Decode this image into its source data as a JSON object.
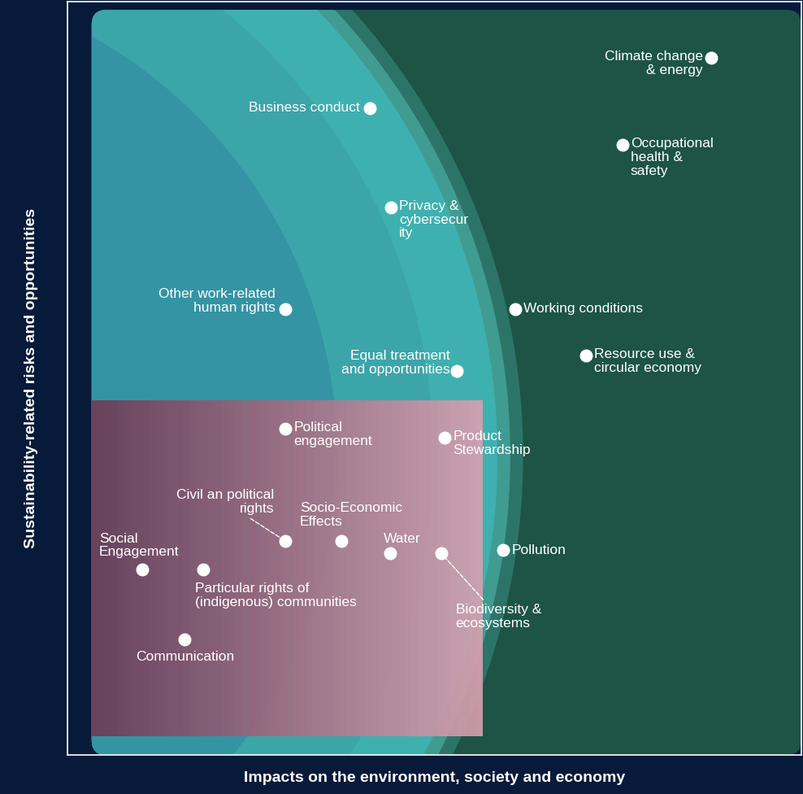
{
  "chart_data": {
    "type": "scatter",
    "x_label": "Impacts on the environment, society and economy",
    "y_label": "Sustainability-related risks and opportunities",
    "xlim": [
      0,
      100
    ],
    "ylim": [
      0,
      100
    ],
    "xticks": [],
    "yticks": [],
    "tick_labels": false,
    "grid": false,
    "color": "#ffffff",
    "marker": "o",
    "points": [
      {
        "label": "Climate change & energy",
        "x": 87.7,
        "y": 92.5
      },
      {
        "label": "Business conduct",
        "x": 41.2,
        "y": 85.9
      },
      {
        "label": "Occupational health & safety",
        "x": 75.6,
        "y": 81.0
      },
      {
        "label": "Privacy & cybersecurity",
        "x": 44.1,
        "y": 72.7
      },
      {
        "label": "Other work-related human rights",
        "x": 29.7,
        "y": 59.2
      },
      {
        "label": "Working conditions",
        "x": 61.0,
        "y": 59.2
      },
      {
        "label": "Resource use & circular economy",
        "x": 70.6,
        "y": 53.0
      },
      {
        "label": "Equal treatment and opportunities",
        "x": 53.0,
        "y": 51.0
      },
      {
        "label": "Political engagement",
        "x": 29.7,
        "y": 43.3
      },
      {
        "label": "Product Stewardship",
        "x": 51.4,
        "y": 42.1
      },
      {
        "label": "Civil an political rights",
        "x": 29.7,
        "y": 28.4
      },
      {
        "label": "Socio-Economic Effects",
        "x": 37.3,
        "y": 28.4
      },
      {
        "label": "Water",
        "x": 44.0,
        "y": 26.8
      },
      {
        "label": "Biodiversity & ecosystems",
        "x": 50.9,
        "y": 26.8
      },
      {
        "label": "Pollution",
        "x": 59.4,
        "y": 27.2
      },
      {
        "label": "Social Engagement",
        "x": 10.2,
        "y": 24.6
      },
      {
        "label": "Particular rights of (indigenous) communities",
        "x": 18.5,
        "y": 24.6
      },
      {
        "label": "Communication",
        "x": 16.0,
        "y": 15.3
      }
    ]
  }
}
